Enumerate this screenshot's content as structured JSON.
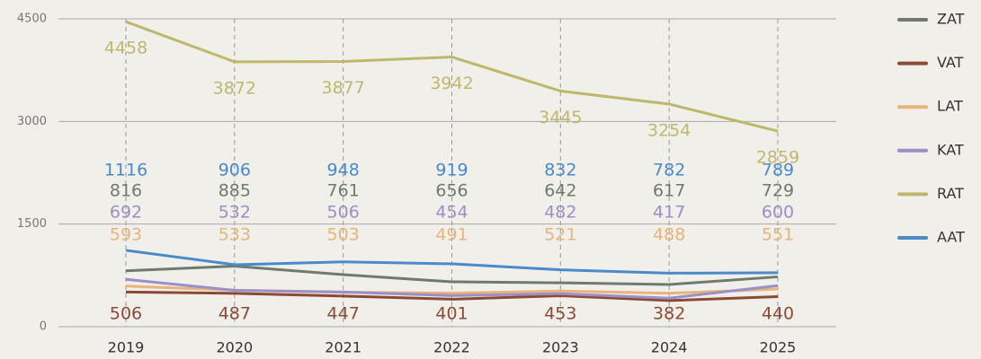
{
  "chart_data": {
    "type": "line",
    "categories": [
      "2019",
      "2020",
      "2021",
      "2022",
      "2023",
      "2024",
      "2025"
    ],
    "series": [
      {
        "name": "ZAT",
        "color": "#6f7a6c",
        "values": [
          816,
          885,
          761,
          656,
          642,
          617,
          729
        ]
      },
      {
        "name": "VAT",
        "color": "#8c4a34",
        "values": [
          506,
          487,
          447,
          401,
          453,
          382,
          440
        ]
      },
      {
        "name": "LAT",
        "color": "#e8b47c",
        "values": [
          593,
          533,
          503,
          491,
          521,
          488,
          551
        ]
      },
      {
        "name": "KAT",
        "color": "#9a8fc6",
        "values": [
          692,
          532,
          506,
          454,
          482,
          417,
          600
        ]
      },
      {
        "name": "RAT",
        "color": "#bdb86c",
        "values": [
          4458,
          3872,
          3877,
          3942,
          3445,
          3254,
          2859
        ]
      },
      {
        "name": "AAT",
        "color": "#4a8acb",
        "values": [
          1116,
          906,
          948,
          919,
          832,
          782,
          789
        ]
      }
    ],
    "ylim": [
      0,
      4500
    ],
    "yticks": [
      0,
      1500,
      3000,
      4500
    ],
    "grid": true,
    "legend": "right"
  }
}
